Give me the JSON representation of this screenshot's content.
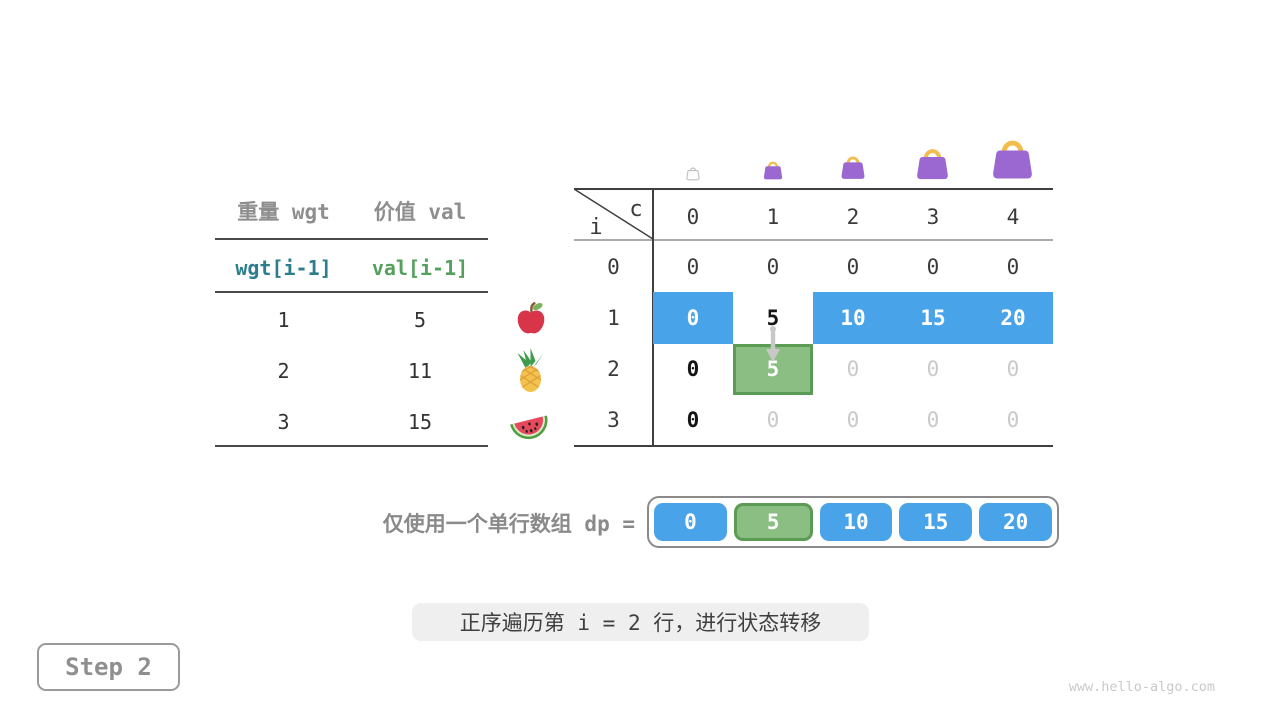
{
  "page": {
    "step_label": "Step 2",
    "caption": "正序遍历第 i = 2 行，进行状态转移",
    "watermark": "www.hello-algo.com"
  },
  "colors": {
    "highlight_blue": "#49a3e8",
    "highlight_green_fill": "#8bbe83",
    "highlight_green_border": "#5b9b54",
    "bag_purple": "#9a68d0",
    "bag_handle_yellow": "#f2bc4f",
    "muted_gray_text": "#c9c9c9",
    "label_gray": "#8e8e8e"
  },
  "icons": {
    "fruits": [
      "apple-icon",
      "pineapple-icon",
      "watermelon-icon"
    ],
    "capacity_bags": [
      "empty-bag-icon",
      "small-bag-icon",
      "medium-bag-icon",
      "large-bag-icon",
      "xlarge-bag-icon"
    ],
    "transfer_arrow": "down-arrow-icon"
  },
  "items_table": {
    "col_headers": [
      "重量 wgt",
      "价值 val"
    ],
    "index_labels": [
      "wgt[i-1]",
      "val[i-1]"
    ],
    "rows": [
      {
        "wgt": "1",
        "val": "5",
        "fruit": "apple"
      },
      {
        "wgt": "2",
        "val": "11",
        "fruit": "pineapple"
      },
      {
        "wgt": "3",
        "val": "15",
        "fruit": "watermelon"
      }
    ]
  },
  "dp_table": {
    "corner": {
      "col_var": "c",
      "row_var": "i"
    },
    "col_headers": [
      "0",
      "1",
      "2",
      "3",
      "4"
    ],
    "rows": [
      {
        "label": "0",
        "cells": [
          {
            "text": "0",
            "variant": "plain"
          },
          {
            "text": "0",
            "variant": "plain"
          },
          {
            "text": "0",
            "variant": "plain"
          },
          {
            "text": "0",
            "variant": "plain"
          },
          {
            "text": "0",
            "variant": "plain"
          }
        ]
      },
      {
        "label": "1",
        "cells": [
          {
            "text": "0",
            "variant": "blue"
          },
          {
            "text": "5",
            "variant": "bold"
          },
          {
            "text": "10",
            "variant": "blue"
          },
          {
            "text": "15",
            "variant": "blue"
          },
          {
            "text": "20",
            "variant": "blue"
          }
        ]
      },
      {
        "label": "2",
        "cells": [
          {
            "text": "0",
            "variant": "bold"
          },
          {
            "text": "5",
            "variant": "green"
          },
          {
            "text": "0",
            "variant": "muted"
          },
          {
            "text": "0",
            "variant": "muted"
          },
          {
            "text": "0",
            "variant": "muted"
          }
        ]
      },
      {
        "label": "3",
        "cells": [
          {
            "text": "0",
            "variant": "bold"
          },
          {
            "text": "0",
            "variant": "muted"
          },
          {
            "text": "0",
            "variant": "muted"
          },
          {
            "text": "0",
            "variant": "muted"
          },
          {
            "text": "0",
            "variant": "muted"
          }
        ]
      }
    ]
  },
  "dp_array": {
    "label": "仅使用一个单行数组 dp =",
    "cells": [
      {
        "text": "0",
        "variant": "blue"
      },
      {
        "text": "5",
        "variant": "green"
      },
      {
        "text": "10",
        "variant": "blue"
      },
      {
        "text": "15",
        "variant": "blue"
      },
      {
        "text": "20",
        "variant": "blue"
      }
    ]
  }
}
